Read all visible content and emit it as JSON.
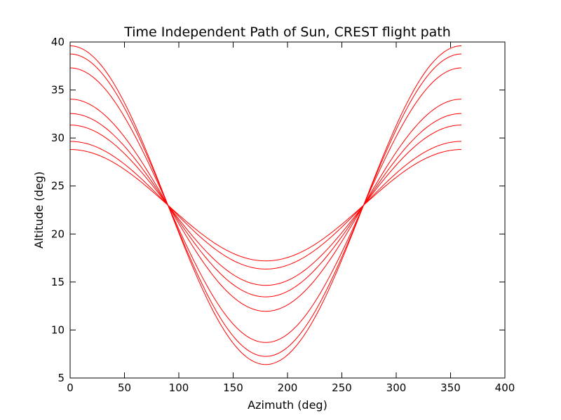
{
  "chart_data": {
    "type": "line",
    "title": "Time Independent Path of Sun, CREST flight path",
    "xlabel": "Azimuth (deg)",
    "ylabel": "Altitude (deg)",
    "xlim": [
      0,
      400
    ],
    "ylim": [
      5,
      40
    ],
    "x_ticks": [
      0,
      50,
      100,
      150,
      200,
      250,
      300,
      350,
      400
    ],
    "y_ticks": [
      5,
      10,
      15,
      20,
      25,
      30,
      35,
      40
    ],
    "grid": false,
    "legend": "none",
    "series_color": "#ff0000",
    "crossing_points": [
      [
        90,
        23
      ],
      [
        270,
        23
      ]
    ],
    "series": [
      {
        "x_range": [
          0,
          360
        ],
        "altitude_at_0": 38.9,
        "altitude_at_180": 5.7
      },
      {
        "x_range": [
          0,
          360
        ],
        "altitude_at_0": 38.5,
        "altitude_at_180": 7.0
      },
      {
        "x_range": [
          0,
          360
        ],
        "altitude_at_0": 37.2,
        "altitude_at_180": 8.6
      },
      {
        "x_range": [
          0,
          360
        ],
        "altitude_at_0": 34.5,
        "altitude_at_180": 12.4
      },
      {
        "x_range": [
          0,
          360
        ],
        "altitude_at_0": 31.9,
        "altitude_at_180": 12.8
      },
      {
        "x_range": [
          0,
          360
        ],
        "altitude_at_0": 31.4,
        "altitude_at_180": 14.7
      },
      {
        "x_range": [
          0,
          360
        ],
        "altitude_at_0": 29.3,
        "altitude_at_180": 16.0
      },
      {
        "x_range": [
          0,
          360
        ],
        "altitude_at_0": 29.0,
        "altitude_at_180": 17.4
      }
    ]
  }
}
